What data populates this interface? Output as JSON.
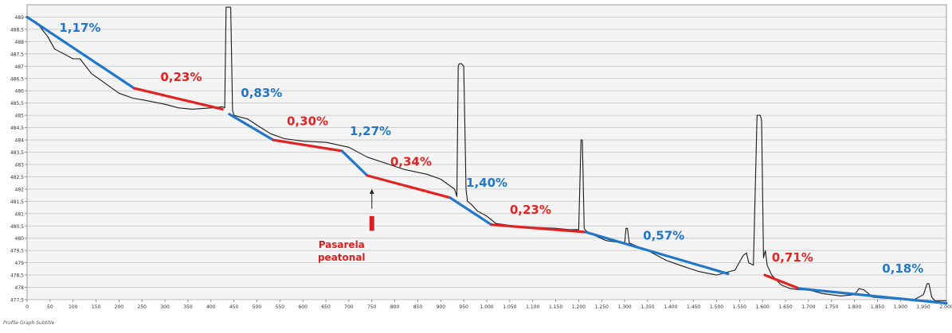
{
  "chart_data": {
    "type": "line",
    "title": "",
    "xlabel": "",
    "ylabel": "",
    "xlim": [
      0,
      2000
    ],
    "ylim": [
      477.5,
      489.5
    ],
    "grid": true,
    "x_ticks": [
      0,
      50,
      100,
      150,
      200,
      250,
      300,
      350,
      400,
      450,
      500,
      550,
      600,
      650,
      700,
      750,
      800,
      850,
      900,
      950,
      1000,
      1050,
      1100,
      1150,
      1200,
      1250,
      1300,
      1350,
      1400,
      1450,
      1500,
      1550,
      1600,
      1650,
      1700,
      1750,
      1800,
      1850,
      1900,
      1950,
      2000
    ],
    "x_tick_labels": [
      "0",
      "50",
      "100",
      "150",
      "200",
      "250",
      "300",
      "350",
      "400",
      "450",
      "500",
      "550",
      "600",
      "650",
      "700",
      "750",
      "800",
      "850",
      "900",
      "950",
      "1.000",
      "1.050",
      "1.100",
      "1.150",
      "1.200",
      "1.250",
      "1.300",
      "1.350",
      "1.400",
      "1.450",
      "1.500",
      "1.550",
      "1.600",
      "1.650",
      "1.700",
      "1.750",
      "1.800",
      "1.850",
      "1.900",
      "1.950",
      "2.000"
    ],
    "y_ticks": [
      477.5,
      478,
      478.5,
      479,
      479.5,
      480,
      480.5,
      481,
      481.5,
      482,
      482.5,
      483,
      483.5,
      484,
      484.5,
      485,
      485.5,
      486,
      486.5,
      487,
      487.5,
      488,
      488.5,
      489
    ],
    "y_tick_labels": [
      "477,5",
      "478",
      "478,5",
      "479",
      "479,5",
      "480",
      "480,5",
      "481",
      "481,5",
      "482",
      "482,5",
      "483",
      "483,5",
      "484",
      "484,5",
      "485",
      "485,5",
      "486",
      "486,5",
      "487",
      "487,5",
      "488",
      "488,5",
      "489"
    ],
    "series": [
      {
        "color": "#1a1a1a",
        "x": [
          0,
          20,
          45,
          60,
          80,
          100,
          115,
          140,
          170,
          200,
          230,
          260,
          300,
          330,
          360,
          400,
          425,
          430,
          433,
          436,
          443,
          447,
          450,
          480,
          500,
          530,
          560,
          600,
          650,
          700,
          740,
          780,
          820,
          870,
          900,
          930,
          935,
          938,
          940,
          945,
          950,
          955,
          958,
          965,
          980,
          1000,
          1020,
          1060,
          1100,
          1150,
          1180,
          1200,
          1205,
          1208,
          1212,
          1216,
          1230,
          1260,
          1300,
          1303,
          1306,
          1310,
          1350,
          1390,
          1420,
          1460,
          1500,
          1530,
          1540,
          1552,
          1558,
          1565,
          1570,
          1580,
          1588,
          1595,
          1598,
          1602,
          1606,
          1610,
          1620,
          1640,
          1660,
          1680,
          1700,
          1730,
          1770,
          1800,
          1810,
          1820,
          1840,
          1870,
          1900,
          1930,
          1950,
          1958,
          1962,
          1968,
          1975,
          2000
        ],
        "y": [
          489.0,
          488.8,
          488.2,
          487.7,
          487.5,
          487.3,
          487.3,
          486.7,
          486.3,
          485.9,
          485.7,
          485.6,
          485.45,
          485.3,
          485.25,
          485.3,
          485.35,
          485.3,
          489.4,
          489.4,
          489.4,
          485.2,
          485.0,
          484.85,
          484.6,
          484.25,
          484.05,
          483.95,
          483.9,
          483.7,
          483.3,
          483.05,
          482.8,
          482.6,
          482.4,
          482.0,
          481.7,
          487.0,
          487.1,
          487.1,
          487.0,
          482.0,
          481.5,
          481.4,
          481.1,
          480.9,
          480.6,
          480.5,
          480.45,
          480.4,
          480.35,
          480.35,
          484.0,
          484.0,
          480.4,
          480.3,
          480.15,
          479.9,
          479.8,
          480.4,
          480.4,
          479.8,
          479.5,
          479.1,
          478.9,
          478.65,
          478.5,
          478.65,
          478.7,
          479.1,
          479.3,
          479.4,
          479.0,
          478.9,
          485.0,
          485.0,
          484.8,
          479.2,
          479.5,
          478.9,
          478.5,
          478.1,
          477.95,
          477.9,
          477.9,
          477.75,
          477.65,
          477.7,
          477.95,
          477.9,
          477.6,
          477.55,
          477.55,
          477.5,
          477.7,
          478.15,
          478.15,
          477.6,
          477.45,
          477.45
        ]
      }
    ],
    "segments": [
      {
        "x": [
          0,
          233
        ],
        "y": [
          489.0,
          486.1
        ],
        "color": "#2277c8",
        "label": "1,17%",
        "label_x": 70,
        "label_y": 488.4
      },
      {
        "x": [
          233,
          425
        ],
        "y": [
          486.1,
          485.25
        ],
        "color": "#e02424",
        "label": "0,23%",
        "label_x": 290,
        "label_y": 486.4
      },
      {
        "x": [
          440,
          535
        ],
        "y": [
          485.05,
          484.0
        ],
        "color": "#2277c8",
        "label": "0,83%",
        "label_x": 465,
        "label_y": 485.75
      },
      {
        "x": [
          535,
          685
        ],
        "y": [
          484.0,
          483.55
        ],
        "color": "#e02424",
        "label": "0,30%",
        "label_x": 565,
        "label_y": 484.6
      },
      {
        "x": [
          685,
          740
        ],
        "y": [
          483.55,
          482.55
        ],
        "color": "#2277c8",
        "label": "1,27%",
        "label_x": 702,
        "label_y": 484.2
      },
      {
        "x": [
          740,
          920
        ],
        "y": [
          482.55,
          481.65
        ],
        "color": "#e02424",
        "label": "0,34%",
        "label_x": 790,
        "label_y": 482.95
      },
      {
        "x": [
          920,
          1010
        ],
        "y": [
          481.65,
          480.55
        ],
        "color": "#2277c8",
        "label": "1,40%",
        "label_x": 955,
        "label_y": 482.1
      },
      {
        "x": [
          1010,
          1215
        ],
        "y": [
          480.55,
          480.25
        ],
        "color": "#e02424",
        "label": "0,23%",
        "label_x": 1050,
        "label_y": 481.0
      },
      {
        "x": [
          1215,
          1525
        ],
        "y": [
          480.25,
          478.55
        ],
        "color": "#2277c8",
        "label": "0,57%",
        "label_x": 1340,
        "label_y": 479.95
      },
      {
        "x": [
          1605,
          1680
        ],
        "y": [
          478.5,
          477.95
        ],
        "color": "#e02424",
        "label": "0,71%",
        "label_x": 1620,
        "label_y": 479.05
      },
      {
        "x": [
          1680,
          2000
        ],
        "y": [
          477.95,
          477.35
        ],
        "color": "#2277c8",
        "label": "0,18%",
        "label_x": 1860,
        "label_y": 478.6
      }
    ],
    "annotation": {
      "text": [
        "Pasarela",
        "peatonal"
      ],
      "color": "#d82222",
      "x": 750,
      "arrow_top_y": 482.0,
      "arrow_bottom_y": 481.2,
      "bar_top_y": 480.9,
      "bar_bottom_y": 480.3,
      "text_y": 479.6
    }
  },
  "caption": "Profile Graph Subtitle"
}
